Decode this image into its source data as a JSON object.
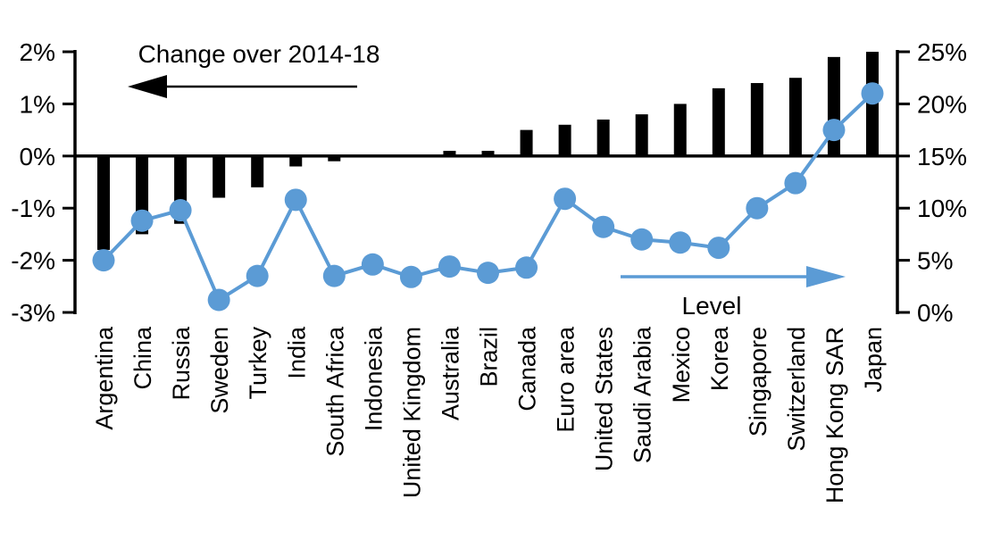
{
  "chart_data": {
    "type": "bar",
    "subtype": "dual-axis bar + line combo",
    "title": "",
    "categories": [
      "Argentina",
      "China",
      "Russia",
      "Sweden",
      "Turkey",
      "India",
      "South Africa",
      "Indonesia",
      "United Kingdom",
      "Australia",
      "Brazil",
      "Canada",
      "Euro area",
      "United States",
      "Saudi Arabia",
      "Mexico",
      "Korea",
      "Singapore",
      "Switzerland",
      "Hong Kong SAR",
      "Japan"
    ],
    "series": [
      {
        "name": "Change over 2014-18",
        "type": "bar",
        "axis": "left",
        "color": "#000000",
        "values": [
          -1.8,
          -1.5,
          -1.3,
          -0.8,
          -0.6,
          -0.2,
          -0.1,
          0.0,
          0.0,
          0.1,
          0.1,
          0.5,
          0.6,
          0.7,
          0.8,
          1.0,
          1.3,
          1.4,
          1.5,
          1.9,
          2.0
        ]
      },
      {
        "name": "Level",
        "type": "line",
        "axis": "right",
        "color": "#5B9BD5",
        "values": [
          5.0,
          8.8,
          9.8,
          1.2,
          3.5,
          10.8,
          3.5,
          4.6,
          3.4,
          4.4,
          3.8,
          4.3,
          10.9,
          8.2,
          7.0,
          6.7,
          6.2,
          10.0,
          12.4,
          17.5,
          21.0
        ]
      }
    ],
    "left_axis": {
      "min": -3,
      "max": 2,
      "step": 1,
      "tick_labels": [
        "2%",
        "1%",
        "0%",
        "-1%",
        "-2%",
        "-3%"
      ]
    },
    "right_axis": {
      "min": 0,
      "max": 25,
      "step": 5,
      "tick_labels": [
        "25%",
        "20%",
        "15%",
        "10%",
        "5%",
        "0%"
      ]
    },
    "annotations": {
      "left_series_label": "Change over 2014-18",
      "left_arrow_direction": "left",
      "right_series_label": "Level",
      "right_arrow_direction": "right"
    },
    "grid": "off",
    "legend_position": "none"
  },
  "colors": {
    "bar": "#000000",
    "line": "#5B9BD5",
    "axis": "#000000",
    "background": "#FFFFFF"
  }
}
